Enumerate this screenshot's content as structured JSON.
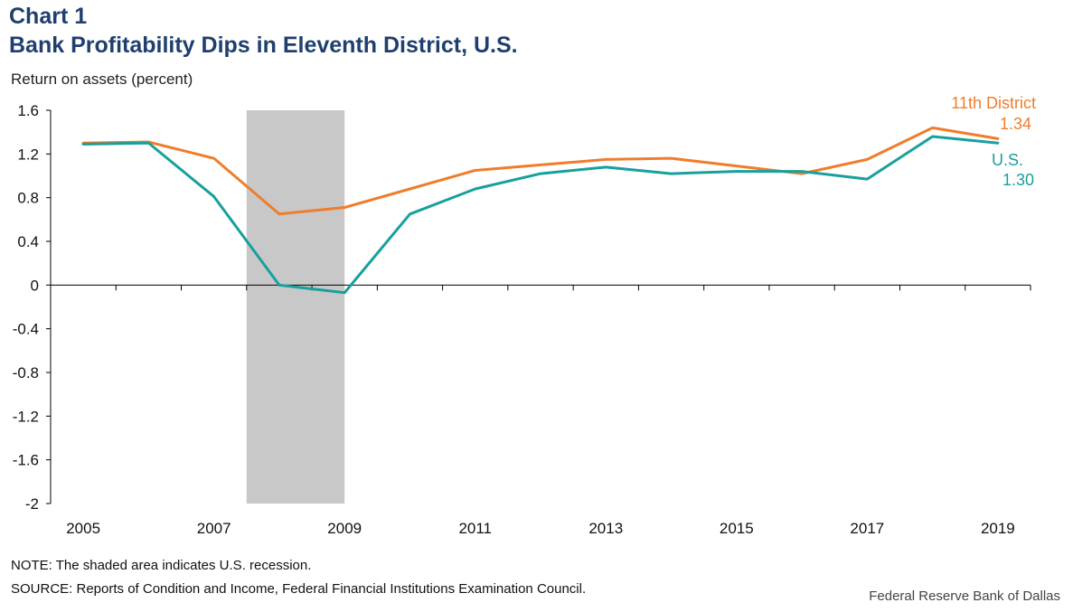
{
  "chart_number": "Chart 1",
  "title": "Bank Profitability Dips in Eleventh District, U.S.",
  "ylabel": "Return on assets (percent)",
  "note": "NOTE: The shaded area indicates U.S. recession.",
  "source": "SOURCE: Reports of Condition and Income, Federal Financial Institutions Examination Council.",
  "credit": "Federal Reserve Bank of Dallas",
  "colors": {
    "district": "#ef7d2b",
    "us": "#18a09c",
    "recession": "#c8c8c8",
    "title": "#1f3f6e"
  },
  "chart_data": {
    "type": "line",
    "x": [
      2005,
      2006,
      2007,
      2008,
      2009,
      2010,
      2011,
      2012,
      2013,
      2014,
      2015,
      2016,
      2017,
      2018,
      2019
    ],
    "series": [
      {
        "name": "11th District",
        "color": "#ef7d2b",
        "end_label": "1.34",
        "values": [
          1.3,
          1.31,
          1.16,
          0.65,
          0.71,
          0.88,
          1.05,
          1.1,
          1.15,
          1.16,
          1.09,
          1.02,
          1.15,
          1.44,
          1.34
        ]
      },
      {
        "name": "U.S.",
        "color": "#18a09c",
        "end_label": "1.30",
        "values": [
          1.29,
          1.3,
          0.81,
          0.0,
          -0.07,
          0.65,
          0.88,
          1.02,
          1.08,
          1.02,
          1.04,
          1.04,
          0.97,
          1.36,
          1.3
        ]
      }
    ],
    "yticks": [
      "1.6",
      "1.2",
      "0.8",
      "0.4",
      "0",
      "-0.4",
      "-0.8",
      "-1.2",
      "-1.6",
      "-2"
    ],
    "ytick_values": [
      1.6,
      1.2,
      0.8,
      0.4,
      0,
      -0.4,
      -0.8,
      -1.2,
      -1.6,
      -2
    ],
    "xticks": [
      "2005",
      "2007",
      "2009",
      "2011",
      "2013",
      "2015",
      "2017",
      "2019"
    ],
    "xtick_values": [
      2005,
      2007,
      2009,
      2011,
      2013,
      2015,
      2017,
      2019
    ],
    "ylim": [
      -2,
      1.6
    ],
    "xlim": [
      2004.5,
      2019.5
    ],
    "recession": [
      2007.5,
      2009
    ],
    "grid": false,
    "legend": "end-of-line labels"
  }
}
